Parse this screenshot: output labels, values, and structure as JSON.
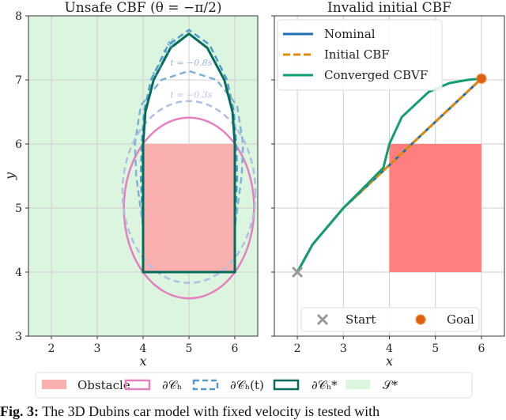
{
  "chart_data": [
    {
      "type": "line",
      "title": "Unsafe CBF (θ = −π/2)",
      "xlabel": "x",
      "ylabel": "y",
      "xlim": [
        1.5,
        6.5
      ],
      "ylim": [
        3,
        8
      ],
      "xticks": [
        2,
        3,
        4,
        5,
        6
      ],
      "yticks": [
        3,
        4,
        5,
        6,
        7,
        8
      ],
      "grid": true,
      "colors": {
        "safe_set": "#dcf5df",
        "obstacle": "#fbb0b0",
        "initial_boundary": "#e57fbf",
        "converged_boundary": "#076b5c",
        "t_1_8": "#4f9ccb",
        "t_0_8": "#7fb2d8",
        "t_0_3": "#b0bfe2"
      },
      "obstacle": {
        "x": [
          4,
          6
        ],
        "y": [
          4,
          6
        ]
      },
      "initial_boundary_ellipse": {
        "center": [
          5,
          5
        ],
        "rx": 1.42,
        "ry": 1.41
      },
      "converged_boundary": [
        [
          4,
          4
        ],
        [
          6,
          4
        ],
        [
          6,
          6
        ],
        [
          5.95,
          6.5
        ],
        [
          5.77,
          7.0
        ],
        [
          5.4,
          7.5
        ],
        [
          5,
          7.72
        ],
        [
          4.6,
          7.5
        ],
        [
          4.23,
          7.0
        ],
        [
          4.05,
          6.5
        ],
        [
          4,
          6
        ],
        [
          4,
          4
        ]
      ],
      "time_boundaries": [
        {
          "label": "t = −1.8s",
          "points": [
            [
              4,
              4.6
            ],
            [
              3.95,
              5.5
            ],
            [
              3.97,
              6.0
            ],
            [
              4.02,
              6.5
            ],
            [
              4.17,
              7.0
            ],
            [
              4.55,
              7.55
            ],
            [
              5,
              7.78
            ],
            [
              5.45,
              7.55
            ],
            [
              5.83,
              7.0
            ],
            [
              5.98,
              6.5
            ],
            [
              6.03,
              6.0
            ],
            [
              6.05,
              5.5
            ],
            [
              6,
              4.6
            ]
          ]
        },
        {
          "label": "t = −0.8s",
          "points": [
            [
              4,
              4.7
            ],
            [
              3.85,
              5.5
            ],
            [
              3.82,
              6.0
            ],
            [
              3.95,
              6.6
            ],
            [
              4.4,
              7.0
            ],
            [
              5,
              7.14
            ],
            [
              5.6,
              7.0
            ],
            [
              6.05,
              6.6
            ],
            [
              6.18,
              6.0
            ],
            [
              6.15,
              5.5
            ],
            [
              6,
              4.7
            ]
          ]
        },
        {
          "label": "t = −0.3s",
          "ellipse": {
            "center": [
              5,
              5.25
            ],
            "rx": 1.45,
            "ry": 1.42
          }
        }
      ]
    },
    {
      "type": "line",
      "title": "Invalid initial CBF",
      "xlabel": "x",
      "xlim": [
        1.5,
        6.5
      ],
      "ylim": [
        3,
        8
      ],
      "xticks": [
        2,
        3,
        4,
        5,
        6
      ],
      "yticks": [
        3,
        4,
        5,
        6,
        7,
        8
      ],
      "grid": true,
      "obstacle": {
        "x": [
          4,
          6
        ],
        "y": [
          4,
          6
        ],
        "color": "#ff7f7f"
      },
      "series": [
        {
          "name": "Nominal",
          "color": "#1f6fb4",
          "style": "solid",
          "points": [
            [
              2,
              4
            ],
            [
              2.33,
              4.43
            ],
            [
              3,
              5.0
            ],
            [
              3.45,
              5.3
            ],
            [
              6,
              7.02
            ]
          ]
        },
        {
          "name": "Initial CBF",
          "color": "#e08a0b",
          "style": "dashed",
          "points": [
            [
              2,
              4
            ],
            [
              2.33,
              4.43
            ],
            [
              3,
              5.0
            ],
            [
              3.45,
              5.3
            ],
            [
              6,
              7.02
            ]
          ]
        },
        {
          "name": "Converged CBVF",
          "color": "#139e72",
          "style": "solid",
          "points": [
            [
              2,
              4
            ],
            [
              2.33,
              4.43
            ],
            [
              3,
              5.0
            ],
            [
              3.53,
              5.38
            ],
            [
              3.87,
              5.63
            ],
            [
              4.0,
              6.0
            ],
            [
              4.27,
              6.42
            ],
            [
              4.85,
              6.81
            ],
            [
              5.3,
              6.95
            ],
            [
              5.7,
              7.0
            ],
            [
              6,
              7.02
            ]
          ]
        }
      ],
      "start": {
        "label": "Start",
        "point": [
          2,
          4
        ],
        "color": "#999999"
      },
      "goal": {
        "label": "Goal",
        "point": [
          6,
          7.02
        ],
        "color": "#e0600f"
      },
      "legend_position": "top-left"
    }
  ],
  "shared_legend": [
    {
      "label": "Obstacle",
      "kind": "fill",
      "color": "#fbb0b0"
    },
    {
      "label": "∂𝒞ₕ",
      "kind": "outline",
      "color": "#e57fbf"
    },
    {
      "label": "∂𝒞ₕ(t)",
      "kind": "dashed-outline",
      "color": "#4f9ccb"
    },
    {
      "label": "∂𝒞ₕ*",
      "kind": "outline",
      "color": "#076b5c"
    },
    {
      "label": "𝒮*",
      "kind": "fill",
      "color": "#dcf5df"
    }
  ],
  "caption": {
    "prefix": "Fig. 3:",
    "text": "The 3D Dubins car model with fixed velocity is tested with"
  }
}
